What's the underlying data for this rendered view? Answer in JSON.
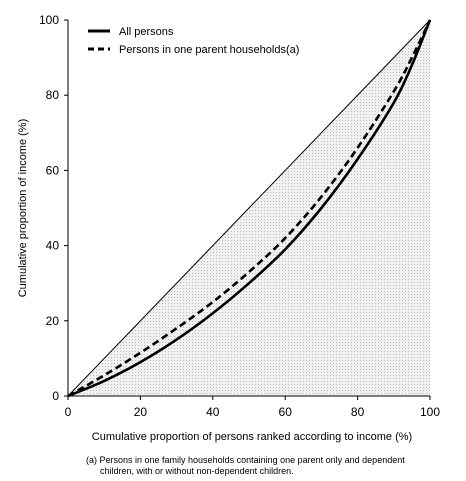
{
  "chart_data": {
    "type": "line",
    "title": "",
    "xlabel": "Cumulative proportion of persons ranked according to income (%)",
    "ylabel": "Cumulative proportion of income (%)",
    "xlim": [
      0,
      100
    ],
    "ylim": [
      0,
      100
    ],
    "x_ticks": [
      "0",
      "20",
      "40",
      "60",
      "80",
      "100"
    ],
    "y_ticks": [
      "0",
      "20",
      "40",
      "60",
      "80",
      "100"
    ],
    "grid": false,
    "legend_position": "top-left",
    "area_fill": "light grey stippled region between the line of equality and the Lorenz curves",
    "series": [
      {
        "name": "All persons",
        "style": "solid",
        "x": [
          0,
          10,
          20,
          30,
          40,
          50,
          60,
          70,
          80,
          90,
          95,
          100
        ],
        "y": [
          0,
          4,
          9,
          15,
          22,
          30,
          39,
          50,
          63,
          78,
          88,
          100
        ]
      },
      {
        "name": "Persons in one parent households(a)",
        "style": "dashed",
        "x": [
          0,
          10,
          20,
          30,
          40,
          50,
          60,
          70,
          80,
          90,
          95,
          100
        ],
        "y": [
          0,
          5.5,
          11.5,
          18,
          25,
          33,
          42,
          53,
          66,
          81,
          90,
          100
        ]
      },
      {
        "name": "",
        "style": "thin",
        "x": [
          0,
          100
        ],
        "y": [
          0,
          100
        ]
      }
    ],
    "footnote": [
      "(a) Persons in one family households containing one parent only and dependent",
      "children, with or without non-dependent children."
    ]
  }
}
